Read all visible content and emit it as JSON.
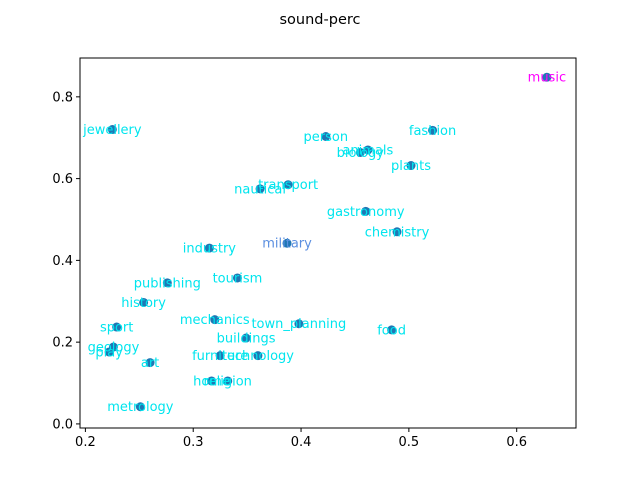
{
  "chart_data": {
    "type": "scatter",
    "title": "sound-perc",
    "xlabel": "",
    "ylabel": "",
    "xlim": [
      0.195,
      0.655
    ],
    "ylim": [
      -0.01,
      0.895
    ],
    "xticks": [
      0.2,
      0.3,
      0.4,
      0.5,
      0.6
    ],
    "yticks": [
      0.0,
      0.2,
      0.4,
      0.6,
      0.8
    ],
    "grid": false,
    "marker_color": "#1f77b4",
    "points": [
      {
        "label": "music",
        "x": 0.628,
        "y": 0.848,
        "color": "#ff00ff"
      },
      {
        "label": "jewellery",
        "x": 0.225,
        "y": 0.72,
        "color": "#00e5ee"
      },
      {
        "label": "fashion",
        "x": 0.522,
        "y": 0.718,
        "color": "#00e5ee"
      },
      {
        "label": "person",
        "x": 0.423,
        "y": 0.703,
        "color": "#00e5ee"
      },
      {
        "label": "animals",
        "x": 0.462,
        "y": 0.67,
        "color": "#00e5ee"
      },
      {
        "label": "biology",
        "x": 0.455,
        "y": 0.664,
        "color": "#00e5ee"
      },
      {
        "label": "plants",
        "x": 0.502,
        "y": 0.632,
        "color": "#00e5ee"
      },
      {
        "label": "transport",
        "x": 0.388,
        "y": 0.585,
        "color": "#00e5ee"
      },
      {
        "label": "nautical",
        "x": 0.362,
        "y": 0.575,
        "color": "#00e5ee"
      },
      {
        "label": "gastronomy",
        "x": 0.46,
        "y": 0.52,
        "color": "#00e5ee"
      },
      {
        "label": "chemistry",
        "x": 0.489,
        "y": 0.47,
        "color": "#00e5ee"
      },
      {
        "label": "military",
        "x": 0.387,
        "y": 0.442,
        "color": "#5b8fe0"
      },
      {
        "label": "industry",
        "x": 0.315,
        "y": 0.43,
        "color": "#00e5ee"
      },
      {
        "label": "tourism",
        "x": 0.341,
        "y": 0.357,
        "color": "#00e5ee"
      },
      {
        "label": "publishing",
        "x": 0.276,
        "y": 0.345,
        "color": "#00e5ee"
      },
      {
        "label": "history",
        "x": 0.254,
        "y": 0.297,
        "color": "#00e5ee"
      },
      {
        "label": "mechanics",
        "x": 0.32,
        "y": 0.255,
        "color": "#00e5ee"
      },
      {
        "label": "town_planning",
        "x": 0.398,
        "y": 0.245,
        "color": "#00e5ee"
      },
      {
        "label": "sport",
        "x": 0.229,
        "y": 0.237,
        "color": "#00e5ee"
      },
      {
        "label": "food",
        "x": 0.484,
        "y": 0.23,
        "color": "#00e5ee"
      },
      {
        "label": "buildings",
        "x": 0.349,
        "y": 0.21,
        "color": "#00e5ee"
      },
      {
        "label": "geology",
        "x": 0.226,
        "y": 0.188,
        "color": "#00e5ee"
      },
      {
        "label": "play",
        "x": 0.222,
        "y": 0.176,
        "color": "#00e5ee"
      },
      {
        "label": "furniture",
        "x": 0.325,
        "y": 0.167,
        "color": "#00e5ee"
      },
      {
        "label": "technology",
        "x": 0.36,
        "y": 0.167,
        "color": "#00e5ee"
      },
      {
        "label": "art",
        "x": 0.26,
        "y": 0.15,
        "color": "#00e5ee"
      },
      {
        "label": "religion",
        "x": 0.332,
        "y": 0.105,
        "color": "#00e5ee"
      },
      {
        "label": "home",
        "x": 0.317,
        "y": 0.105,
        "color": "#00e5ee"
      },
      {
        "label": "metrology",
        "x": 0.251,
        "y": 0.042,
        "color": "#00e5ee"
      }
    ]
  }
}
